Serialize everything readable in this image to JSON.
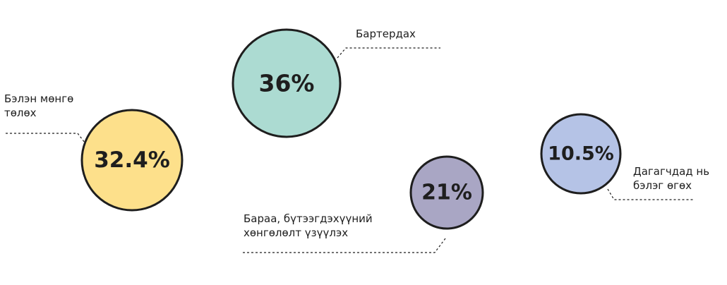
{
  "chart_data": {
    "type": "bubble",
    "items": [
      {
        "lines": [
          "Бэлэн мөнгө",
          "төлөх"
        ],
        "value": 32.4,
        "value_label": "32.4%",
        "color": "#fde08b"
      },
      {
        "lines": [
          "Бартердах"
        ],
        "value": 36,
        "value_label": "36%",
        "color": "#acdbd2"
      },
      {
        "lines": [
          "Бараа, бүтээгдэхүүний",
          "хөнгөлөлт үзүүлэх"
        ],
        "value": 21,
        "value_label": "21%",
        "color": "#a9a6c4"
      },
      {
        "lines": [
          "Дагагчдад нь",
          "бэлэг өгөх"
        ],
        "value": 10.5,
        "value_label": "10.5%",
        "color": "#b5c3e6"
      }
    ]
  }
}
